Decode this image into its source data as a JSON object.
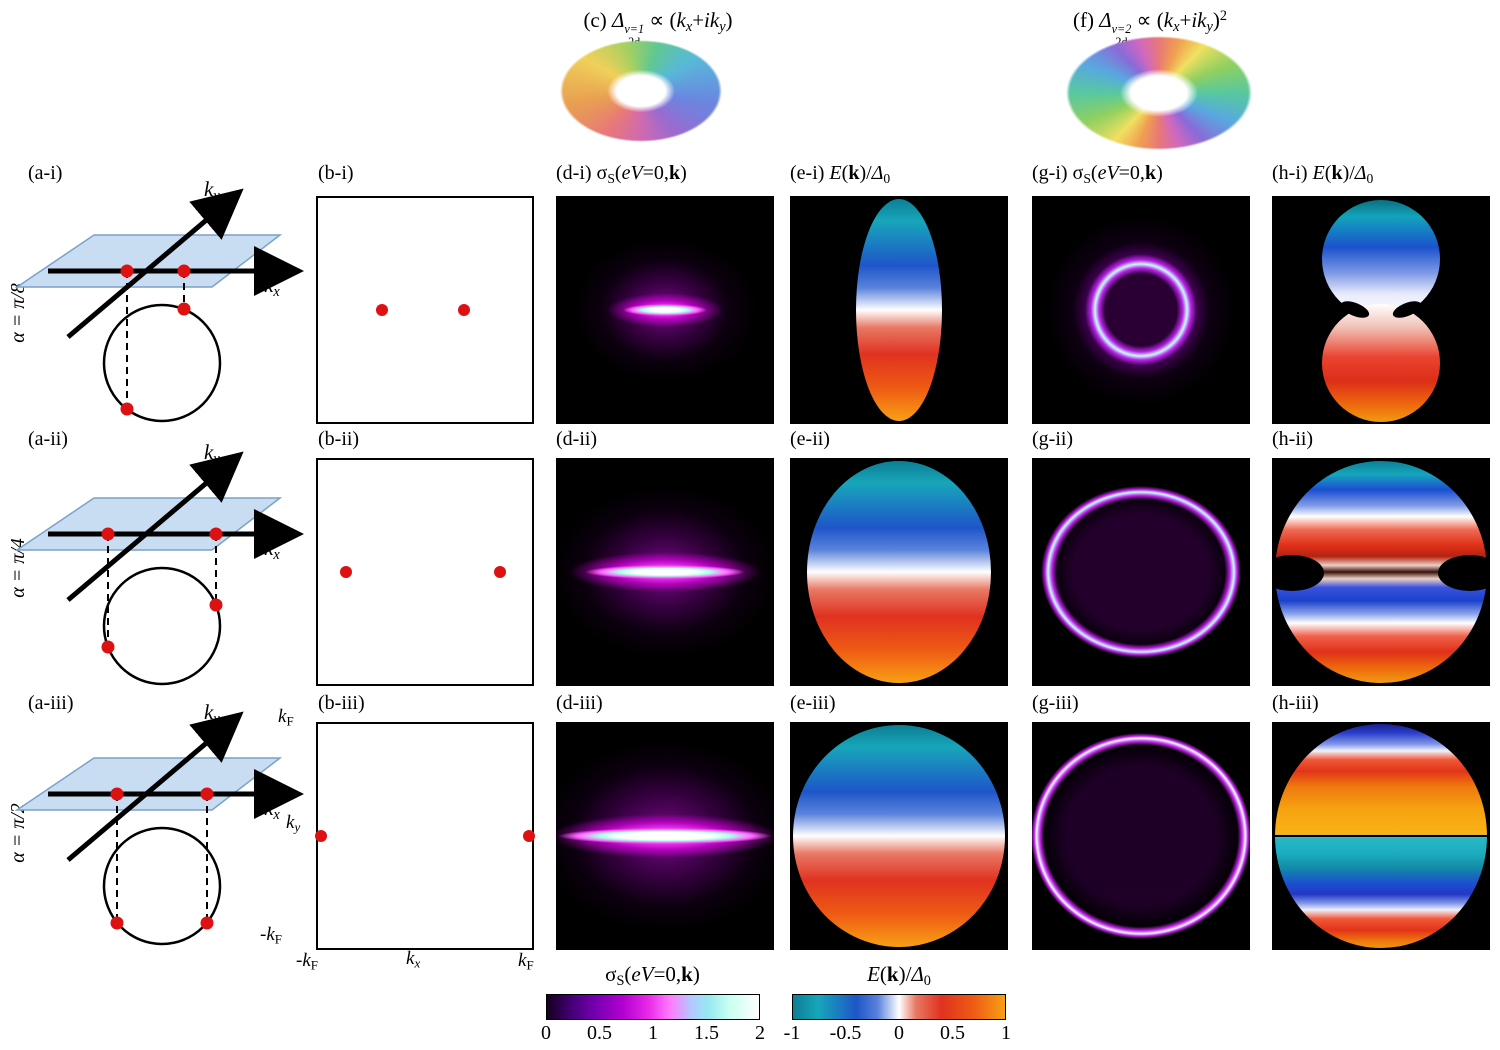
{
  "labels": {
    "a1": "(a-i)",
    "a2": "(a-ii)",
    "a3": "(a-iii)",
    "b1": "(b-i)",
    "b2": "(b-ii)",
    "b3": "(b-iii)",
    "d2": "(d-ii)",
    "d3": "(d-iii)",
    "e2": "(e-ii)",
    "e3": "(e-iii)",
    "g2": "(g-ii)",
    "g3": "(g-iii)",
    "h2": "(h-ii)",
    "h3": "(h-iii)",
    "alpha1": "α = π/8",
    "alpha2": "α = π/4",
    "alpha3": "α = π/2"
  },
  "rich": {
    "title_c": [
      {
        "t": "(c) "
      },
      {
        "t": "Δ",
        "c": "ri"
      },
      {
        "stack": [
          "ν=1",
          "2d"
        ]
      },
      {
        "t": " ∝ ("
      },
      {
        "t": "k",
        "c": "ri"
      },
      {
        "t": "x",
        "c": "rs ri"
      },
      {
        "t": "+"
      },
      {
        "t": "ik",
        "c": "ri"
      },
      {
        "t": "y",
        "c": "rs ri"
      },
      {
        "t": ")"
      }
    ],
    "title_f": [
      {
        "t": "(f) "
      },
      {
        "t": "Δ",
        "c": "ri"
      },
      {
        "stack": [
          "ν=2",
          "2d"
        ]
      },
      {
        "t": " ∝ ("
      },
      {
        "t": "k",
        "c": "ri"
      },
      {
        "t": "x",
        "c": "rs ri"
      },
      {
        "t": "+"
      },
      {
        "t": "ik",
        "c": "ri"
      },
      {
        "t": "y",
        "c": "rs ri"
      },
      {
        "t": ")"
      },
      {
        "t": "2",
        "c": "rp"
      }
    ],
    "d1": [
      {
        "t": "(d-i) "
      },
      {
        "t": "σ"
      },
      {
        "t": "S",
        "c": "rs"
      },
      {
        "t": "("
      },
      {
        "t": "eV",
        "c": "ri"
      },
      {
        "t": "=0,"
      },
      {
        "t": "k",
        "c": "rb"
      },
      {
        "t": ")"
      }
    ],
    "e1": [
      {
        "t": "(e-i) "
      },
      {
        "t": "E",
        "c": "ri"
      },
      {
        "t": "("
      },
      {
        "t": "k",
        "c": "rb"
      },
      {
        "t": ")/"
      },
      {
        "t": "Δ",
        "c": "ri"
      },
      {
        "t": "0",
        "c": "rs"
      }
    ],
    "g1": [
      {
        "t": "(g-i) "
      },
      {
        "t": "σ"
      },
      {
        "t": "S",
        "c": "rs"
      },
      {
        "t": "("
      },
      {
        "t": "eV",
        "c": "ri"
      },
      {
        "t": "=0,"
      },
      {
        "t": "k",
        "c": "rb"
      },
      {
        "t": ")"
      }
    ],
    "h1": [
      {
        "t": "(h-i) "
      },
      {
        "t": "E",
        "c": "ri"
      },
      {
        "t": "("
      },
      {
        "t": "k",
        "c": "rb"
      },
      {
        "t": ")/"
      },
      {
        "t": "Δ",
        "c": "ri"
      },
      {
        "t": "0",
        "c": "rs"
      }
    ],
    "cb_sigma": [
      {
        "t": "σ"
      },
      {
        "t": "S",
        "c": "rs"
      },
      {
        "t": "("
      },
      {
        "t": "eV",
        "c": "ri"
      },
      {
        "t": "=0,"
      },
      {
        "t": "k",
        "c": "rb"
      },
      {
        "t": ")"
      }
    ],
    "cb_energy": [
      {
        "t": "E",
        "c": "ri"
      },
      {
        "t": "("
      },
      {
        "t": "k",
        "c": "rb"
      },
      {
        "t": ")/"
      },
      {
        "t": "Δ",
        "c": "ri"
      },
      {
        "t": "0",
        "c": "rs"
      }
    ],
    "ky": [
      {
        "t": "k",
        "c": "ri"
      },
      {
        "t": "y",
        "c": "rs ri"
      }
    ],
    "kx": [
      {
        "t": "k",
        "c": "ri"
      },
      {
        "t": "x",
        "c": "rs ri"
      }
    ],
    "kf": [
      {
        "t": "k",
        "c": "ri"
      },
      {
        "t": "F",
        "c": "rs"
      }
    ],
    "nkf": [
      {
        "t": "-"
      },
      {
        "t": "k",
        "c": "ri"
      },
      {
        "t": "F",
        "c": "rs"
      }
    ]
  },
  "colorbars": {
    "sigma": {
      "ticks": [
        "0",
        "0.5",
        "1",
        "1.5",
        "2"
      ],
      "range": [
        0,
        2
      ]
    },
    "energy": {
      "ticks": [
        "-1",
        "-0.5",
        "0",
        "0.5",
        "1"
      ],
      "range": [
        -1,
        1
      ]
    }
  },
  "b_dots": {
    "i": [
      [
        30,
        50
      ],
      [
        68,
        50
      ]
    ],
    "ii": [
      [
        13,
        50
      ],
      [
        85,
        50
      ]
    ],
    "iii": [
      [
        1.5,
        50
      ],
      [
        98.5,
        50
      ]
    ]
  },
  "colors": {
    "dot_red": "#dd1111",
    "plane_blue": "#c8dcf2",
    "panel_background": "#000000"
  }
}
